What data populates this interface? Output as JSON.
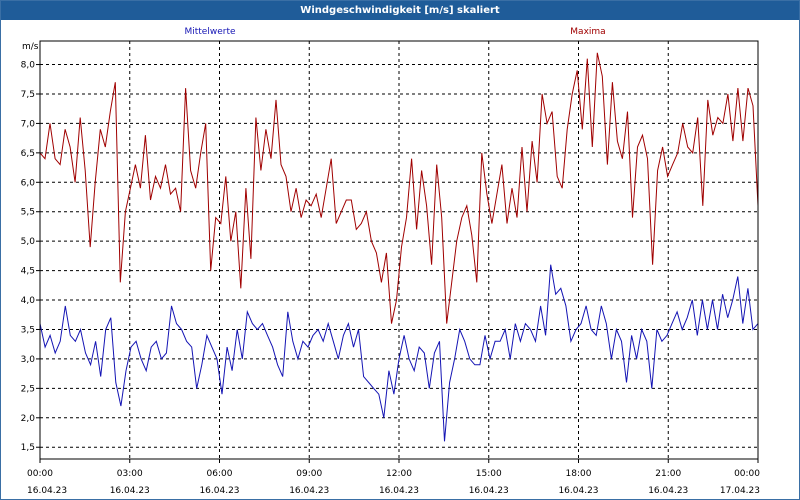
{
  "chart_data": {
    "type": "line",
    "title": "Windgeschwindigkeit [m/s] skaliert",
    "ylabel": "m/s",
    "ylim": [
      1.3,
      8.4
    ],
    "yticks": [
      1.5,
      2.0,
      2.5,
      3.0,
      3.5,
      4.0,
      4.5,
      5.0,
      5.5,
      6.0,
      6.5,
      7.0,
      7.5,
      8.0
    ],
    "ytick_labels": [
      "1,5",
      "2,0",
      "2,5",
      "3,0",
      "3,5",
      "4,0",
      "4,5",
      "5,0",
      "5,5",
      "6,0",
      "6,5",
      "7,0",
      "7,5",
      "8,0"
    ],
    "xlim": [
      0,
      24
    ],
    "xticks": [
      {
        "x": 0,
        "time": "00:00",
        "date": "16.04.23"
      },
      {
        "x": 3,
        "time": "03:00",
        "date": "16.04.23"
      },
      {
        "x": 6,
        "time": "06:00",
        "date": "16.04.23"
      },
      {
        "x": 9,
        "time": "09:00",
        "date": "16.04.23"
      },
      {
        "x": 12,
        "time": "12:00",
        "date": "16.04.23"
      },
      {
        "x": 15,
        "time": "15:00",
        "date": "16.04.23"
      },
      {
        "x": 18,
        "time": "18:00",
        "date": "16.04.23"
      },
      {
        "x": 21,
        "time": "21:00",
        "date": "16.04.23"
      },
      {
        "x": 24,
        "time": "00:00",
        "date": "17.04.23"
      }
    ],
    "grid": true,
    "series": [
      {
        "name": "Mittelwerte",
        "color": "#1414b4",
        "values": [
          3.6,
          3.2,
          3.4,
          3.1,
          3.3,
          3.9,
          3.4,
          3.3,
          3.5,
          3.1,
          2.9,
          3.3,
          2.7,
          3.5,
          3.7,
          2.6,
          2.2,
          2.8,
          3.2,
          3.3,
          3.0,
          2.8,
          3.2,
          3.3,
          3.0,
          3.1,
          3.9,
          3.6,
          3.5,
          3.3,
          3.2,
          2.5,
          2.9,
          3.4,
          3.2,
          3.0,
          2.4,
          3.2,
          2.8,
          3.5,
          3.0,
          3.8,
          3.6,
          3.5,
          3.6,
          3.4,
          3.2,
          2.9,
          2.7,
          3.8,
          3.3,
          3.0,
          3.3,
          3.2,
          3.4,
          3.5,
          3.3,
          3.6,
          3.3,
          3.0,
          3.4,
          3.6,
          3.2,
          3.5,
          2.7,
          2.6,
          2.5,
          2.4,
          2.0,
          2.8,
          2.4,
          3.0,
          3.4,
          3.0,
          2.8,
          3.2,
          3.1,
          2.5,
          3.1,
          3.3,
          1.6,
          2.6,
          3.0,
          3.5,
          3.3,
          3.0,
          2.9,
          2.9,
          3.4,
          3.0,
          3.3,
          3.3,
          3.5,
          3.0,
          3.6,
          3.3,
          3.6,
          3.5,
          3.3,
          3.9,
          3.4,
          4.6,
          4.1,
          4.2,
          3.9,
          3.3,
          3.5,
          3.6,
          3.9,
          3.5,
          3.4,
          3.9,
          3.6,
          3.0,
          3.5,
          3.3,
          2.6,
          3.4,
          3.0,
          3.5,
          3.3,
          2.5,
          3.5,
          3.3,
          3.4,
          3.6,
          3.8,
          3.5,
          3.7,
          4.0,
          3.4,
          4.0,
          3.5,
          4.0,
          3.5,
          4.1,
          3.7,
          4.0,
          4.4,
          3.6,
          4.2,
          3.5,
          3.6
        ]
      },
      {
        "name": "Maxima",
        "color": "#a00000",
        "values": [
          6.5,
          6.4,
          7.0,
          6.4,
          6.3,
          6.9,
          6.6,
          6.0,
          7.1,
          6.2,
          4.9,
          6.0,
          6.9,
          6.6,
          7.2,
          7.7,
          4.3,
          5.5,
          5.9,
          6.3,
          5.9,
          6.8,
          5.7,
          6.1,
          5.9,
          6.3,
          5.8,
          5.9,
          5.5,
          7.6,
          6.2,
          5.9,
          6.5,
          7.0,
          4.5,
          5.4,
          5.3,
          6.1,
          5.0,
          5.5,
          4.2,
          5.9,
          4.7,
          7.1,
          6.2,
          6.9,
          6.4,
          7.4,
          6.3,
          6.1,
          5.5,
          5.9,
          5.4,
          5.7,
          5.6,
          5.8,
          5.4,
          5.9,
          6.4,
          5.3,
          5.5,
          5.7,
          5.7,
          5.2,
          5.3,
          5.5,
          5.0,
          4.8,
          4.3,
          4.8,
          3.6,
          4.0,
          4.9,
          5.4,
          6.4,
          5.2,
          6.2,
          5.6,
          4.6,
          6.3,
          5.4,
          3.6,
          4.3,
          5.0,
          5.4,
          5.6,
          5.1,
          4.3,
          6.5,
          5.8,
          5.3,
          5.8,
          6.3,
          5.3,
          5.9,
          5.4,
          6.6,
          5.5,
          6.7,
          6.0,
          7.5,
          7.0,
          7.2,
          6.1,
          5.9,
          6.9,
          7.5,
          7.9,
          6.9,
          8.1,
          6.6,
          8.2,
          7.8,
          6.3,
          7.7,
          6.7,
          6.4,
          7.2,
          5.4,
          6.6,
          6.8,
          6.4,
          4.6,
          6.2,
          6.6,
          6.1,
          6.3,
          6.5,
          7.0,
          6.6,
          6.5,
          7.1,
          5.6,
          7.4,
          6.8,
          7.1,
          7.0,
          7.5,
          6.7,
          7.6,
          6.7,
          7.6,
          7.3,
          5.6
        ]
      }
    ]
  }
}
